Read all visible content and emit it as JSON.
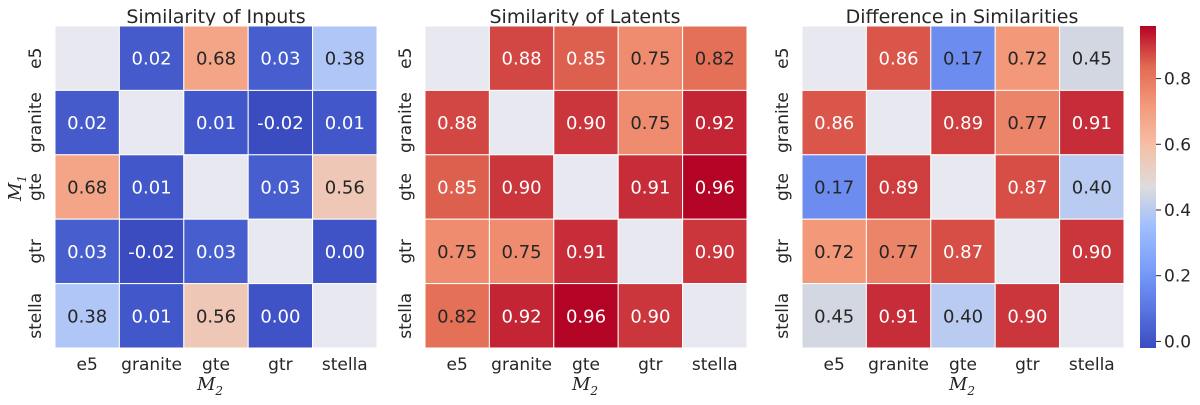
{
  "chart_data": [
    {
      "type": "heatmap",
      "title": "Similarity of Inputs",
      "x_categories": [
        "e5",
        "granite",
        "gte",
        "gtr",
        "stella"
      ],
      "y_categories": [
        "e5",
        "granite",
        "gte",
        "gtr",
        "stella"
      ],
      "values": [
        [
          null,
          0.02,
          0.68,
          0.03,
          0.38
        ],
        [
          0.02,
          null,
          0.01,
          -0.02,
          0.01
        ],
        [
          0.68,
          0.01,
          null,
          0.03,
          0.56
        ],
        [
          0.03,
          -0.02,
          0.03,
          null,
          0.0
        ],
        [
          0.38,
          0.01,
          0.56,
          0.0,
          null
        ]
      ],
      "xlabel": "M",
      "xlabel_sub": "2",
      "ylabel": "M",
      "ylabel_sub": "1"
    },
    {
      "type": "heatmap",
      "title": "Similarity of Latents",
      "x_categories": [
        "e5",
        "granite",
        "gte",
        "gtr",
        "stella"
      ],
      "y_categories": [
        "e5",
        "granite",
        "gte",
        "gtr",
        "stella"
      ],
      "values": [
        [
          null,
          0.88,
          0.85,
          0.75,
          0.82
        ],
        [
          0.88,
          null,
          0.9,
          0.75,
          0.92
        ],
        [
          0.85,
          0.9,
          null,
          0.91,
          0.96
        ],
        [
          0.75,
          0.75,
          0.91,
          null,
          0.9
        ],
        [
          0.82,
          0.92,
          0.96,
          0.9,
          null
        ]
      ],
      "xlabel": "M",
      "xlabel_sub": "2"
    },
    {
      "type": "heatmap",
      "title": "Difference in Similarities",
      "x_categories": [
        "e5",
        "granite",
        "gte",
        "gtr",
        "stella"
      ],
      "y_categories": [
        "e5",
        "granite",
        "gte",
        "gtr",
        "stella"
      ],
      "values": [
        [
          null,
          0.86,
          0.17,
          0.72,
          0.45
        ],
        [
          0.86,
          null,
          0.89,
          0.77,
          0.91
        ],
        [
          0.17,
          0.89,
          null,
          0.87,
          0.4
        ],
        [
          0.72,
          0.77,
          0.87,
          null,
          0.9
        ],
        [
          0.45,
          0.91,
          0.4,
          0.9,
          null
        ]
      ],
      "xlabel": "M",
      "xlabel_sub": "2"
    }
  ],
  "colorbar": {
    "colormap": "coolwarm",
    "range": [
      -0.02,
      0.96
    ],
    "ticks": [
      "0.0",
      "0.2",
      "0.4",
      "0.6",
      "0.8"
    ],
    "tick_values": [
      0.0,
      0.2,
      0.4,
      0.6,
      0.8
    ]
  },
  "colors": {
    "missing_cell": "#e8e8f0",
    "grid_line": "#ffffff"
  }
}
